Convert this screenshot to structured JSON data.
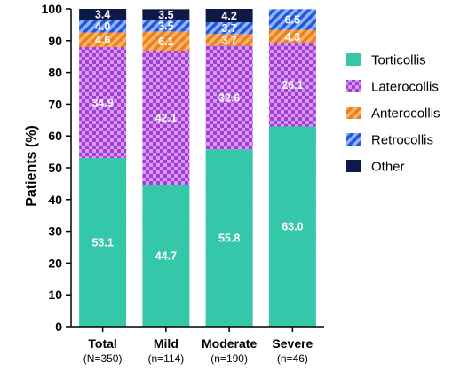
{
  "chart_data": {
    "type": "bar",
    "stacked": true,
    "ylabel": "Patients (%)",
    "ylim": [
      0,
      100
    ],
    "yticks": [
      0,
      10,
      20,
      30,
      40,
      50,
      60,
      70,
      80,
      90,
      100
    ],
    "categories": [
      "Total",
      "Mild",
      "Moderate",
      "Severe"
    ],
    "category_sublabels": [
      "(N=350)",
      "(n=114)",
      "(n=190)",
      "(n=46)"
    ],
    "legend_position": "right",
    "grid": false,
    "series": [
      {
        "name": "Torticollis",
        "color": "#2ec4a6",
        "pattern": "dots",
        "values": [
          53.1,
          44.7,
          55.8,
          63.0
        ],
        "labels": [
          "53.1",
          "44.7",
          "55.8",
          "63.0"
        ]
      },
      {
        "name": "Laterocollis",
        "color": "#a33bd6",
        "pattern": "checker",
        "values": [
          34.9,
          42.1,
          32.6,
          26.1
        ],
        "labels": [
          "34.9",
          "42.1",
          "32.6",
          "26.1"
        ]
      },
      {
        "name": "Anterocollis",
        "color": "#f08c2a",
        "pattern": "diagonal",
        "values": [
          4.6,
          6.1,
          3.7,
          4.3
        ],
        "labels": [
          "4.6",
          "6.1",
          "3.7",
          "4.3"
        ]
      },
      {
        "name": "Retrocollis",
        "color": "#2f63e0",
        "pattern": "diagonal",
        "values": [
          4.0,
          3.5,
          3.7,
          6.5
        ],
        "labels": [
          "4.0",
          "3.5",
          "3.7",
          "6.5"
        ]
      },
      {
        "name": "Other",
        "color": "#0d1a45",
        "pattern": "solid",
        "values": [
          3.4,
          3.5,
          4.2,
          0
        ],
        "labels": [
          "3.4",
          "3.5",
          "4.2",
          ""
        ]
      }
    ]
  }
}
